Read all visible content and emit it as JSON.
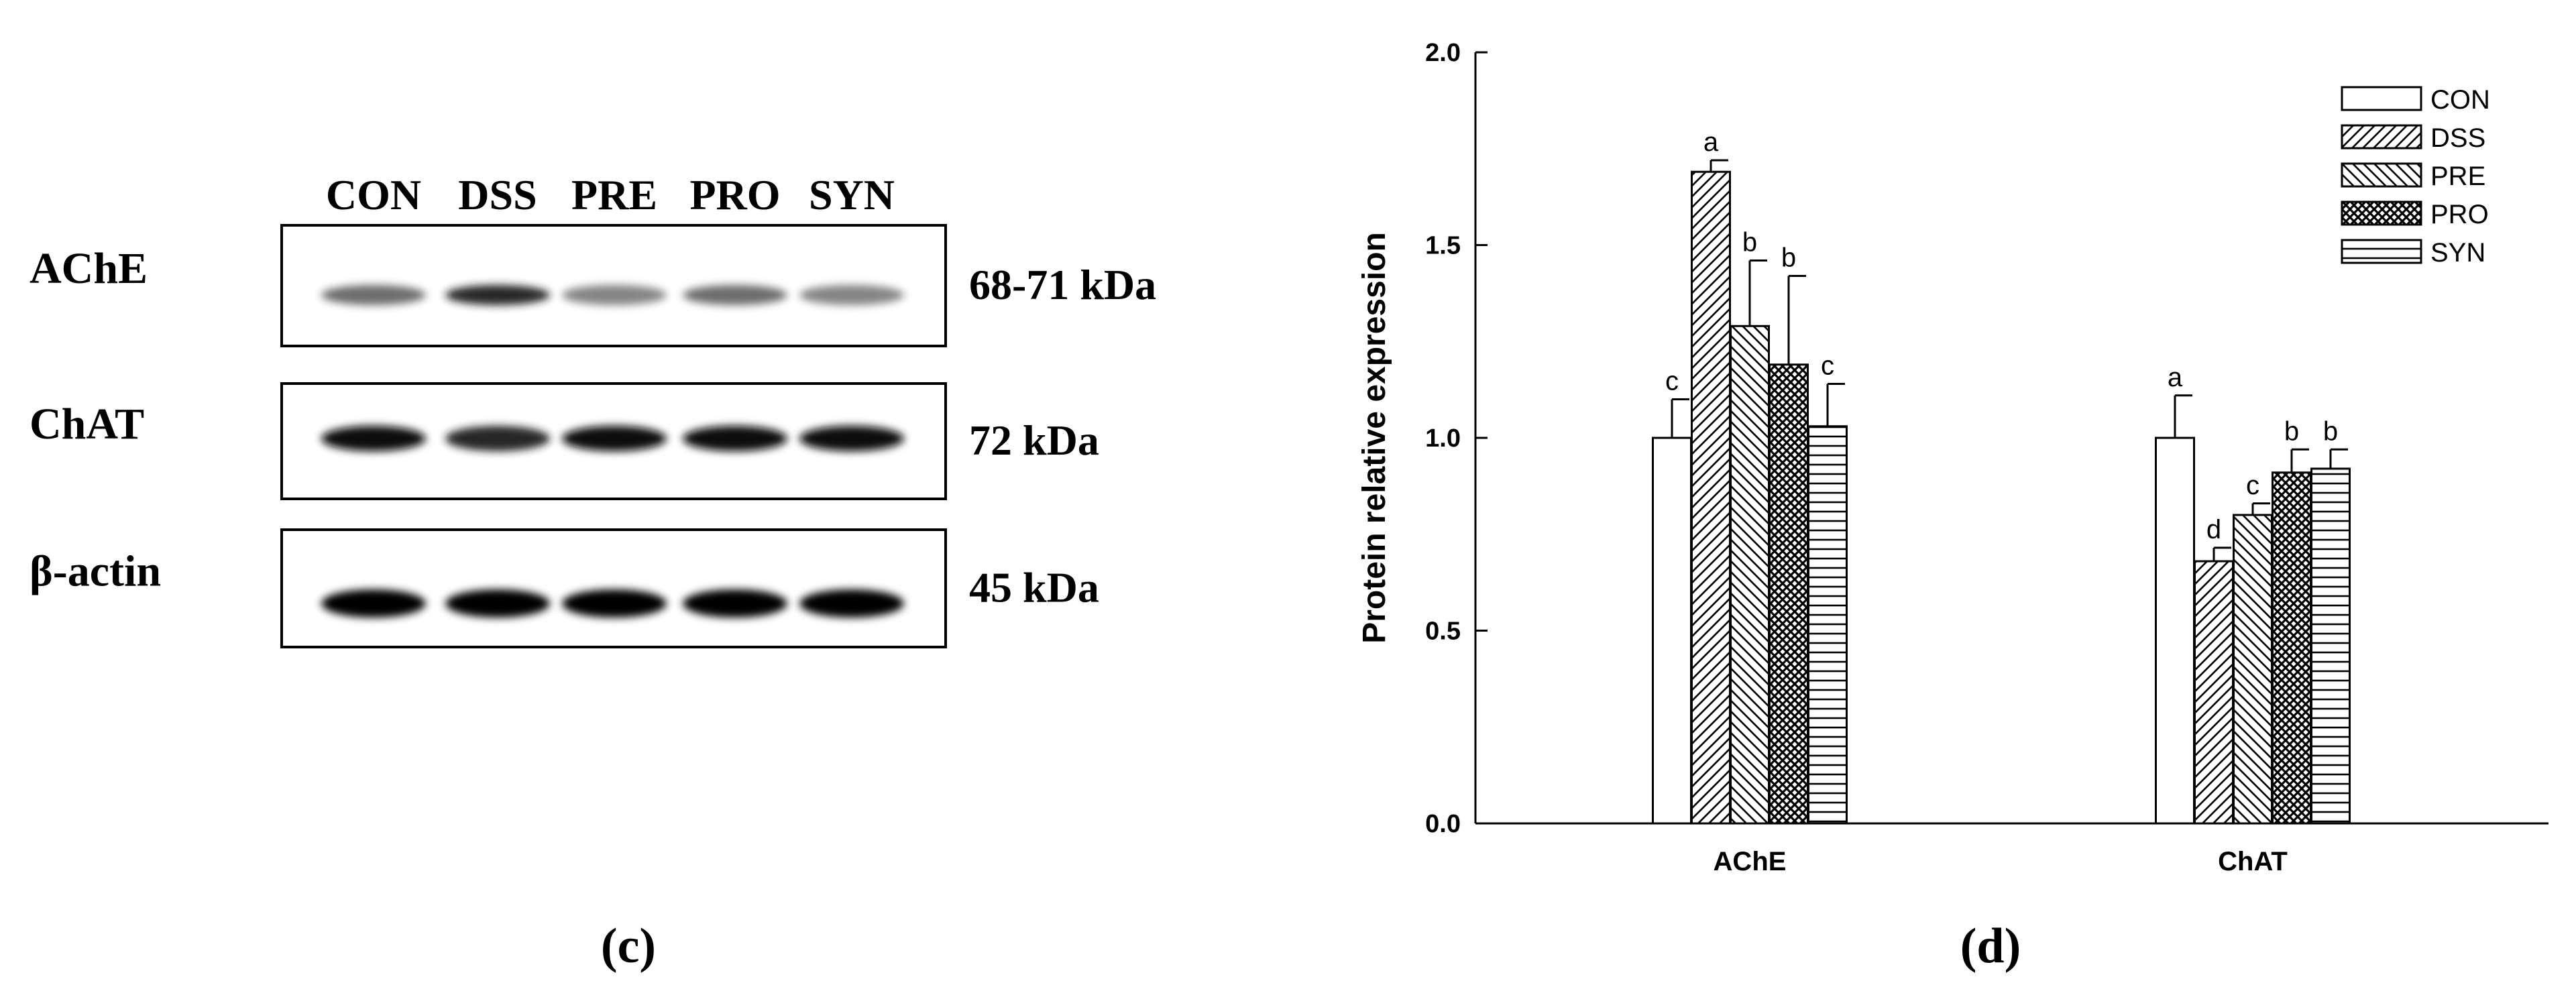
{
  "panel_c": {
    "caption_open": "(",
    "caption_letter": "c",
    "caption_close": ")",
    "lanes": [
      "CON",
      "DSS",
      "PRE",
      "PRO",
      "SYN"
    ],
    "blots": [
      {
        "protein": "AChE",
        "size": "68-71 kDa",
        "band_intensity": [
          0.55,
          0.8,
          0.45,
          0.55,
          0.45
        ]
      },
      {
        "protein": "ChAT",
        "size": "72 kDa",
        "band_intensity": [
          0.95,
          0.8,
          0.95,
          0.9,
          0.95
        ]
      },
      {
        "protein": "β-actin",
        "size": "45 kDa",
        "band_intensity": [
          1.0,
          1.0,
          1.0,
          1.0,
          1.0
        ]
      }
    ]
  },
  "panel_d": {
    "caption_open": "(",
    "caption_letter": "d",
    "caption_close": ")",
    "chart_data": {
      "type": "bar",
      "title": "",
      "xlabel": "",
      "ylabel": "Protein relative expression",
      "categories": [
        "AChE",
        "ChAT"
      ],
      "ylim": [
        0,
        2.0
      ],
      "yticks": [
        "0.0",
        "0.5",
        "1.0",
        "1.5",
        "2.0"
      ],
      "legend_position": "top-right",
      "grid": false,
      "series": [
        {
          "name": "CON",
          "pattern": "blank",
          "values": [
            1.0,
            1.0
          ],
          "errors": [
            0.1,
            0.11
          ],
          "labels": [
            "c",
            "a"
          ]
        },
        {
          "name": "DSS",
          "pattern": "diag-right",
          "values": [
            1.69,
            0.68
          ],
          "errors": [
            0.03,
            0.035
          ],
          "labels": [
            "a",
            "d"
          ]
        },
        {
          "name": "PRE",
          "pattern": "diag-left",
          "values": [
            1.29,
            0.8
          ],
          "errors": [
            0.17,
            0.03
          ],
          "labels": [
            "b",
            "c"
          ]
        },
        {
          "name": "PRO",
          "pattern": "crosshatch",
          "values": [
            1.19,
            0.91
          ],
          "errors": [
            0.23,
            0.06
          ],
          "labels": [
            "b",
            "b"
          ]
        },
        {
          "name": "SYN",
          "pattern": "horizontal",
          "values": [
            1.03,
            0.92
          ],
          "errors": [
            0.11,
            0.05
          ],
          "labels": [
            "c",
            "b"
          ]
        }
      ]
    }
  }
}
